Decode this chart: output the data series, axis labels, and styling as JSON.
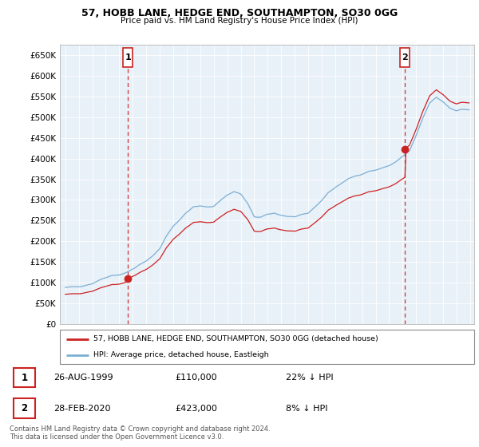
{
  "title": "57, HOBB LANE, HEDGE END, SOUTHAMPTON, SO30 0GG",
  "subtitle": "Price paid vs. HM Land Registry's House Price Index (HPI)",
  "hpi_color": "#7bafd4",
  "price_color": "#cc2222",
  "annotation_line_color": "#cc3333",
  "background_color": "#ffffff",
  "plot_bg_color": "#e8f0f8",
  "grid_color": "#ffffff",
  "ylim": [
    0,
    675000
  ],
  "yticks": [
    0,
    50000,
    100000,
    150000,
    200000,
    250000,
    300000,
    350000,
    400000,
    450000,
    500000,
    550000,
    600000,
    650000
  ],
  "xlim_start": 1994.6,
  "xlim_end": 2025.3,
  "point1": {
    "year": 1999.65,
    "value": 110000,
    "label": "1",
    "date": "26-AUG-1999",
    "price": "£110,000",
    "note": "22% ↓ HPI"
  },
  "point2": {
    "year": 2020.17,
    "value": 423000,
    "label": "2",
    "date": "28-FEB-2020",
    "price": "£423,000",
    "note": "8% ↓ HPI"
  },
  "legend_line1": "57, HOBB LANE, HEDGE END, SOUTHAMPTON, SO30 0GG (detached house)",
  "legend_line2": "HPI: Average price, detached house, Eastleigh",
  "footer1": "Contains HM Land Registry data © Crown copyright and database right 2024.",
  "footer2": "This data is licensed under the Open Government Licence v3.0."
}
